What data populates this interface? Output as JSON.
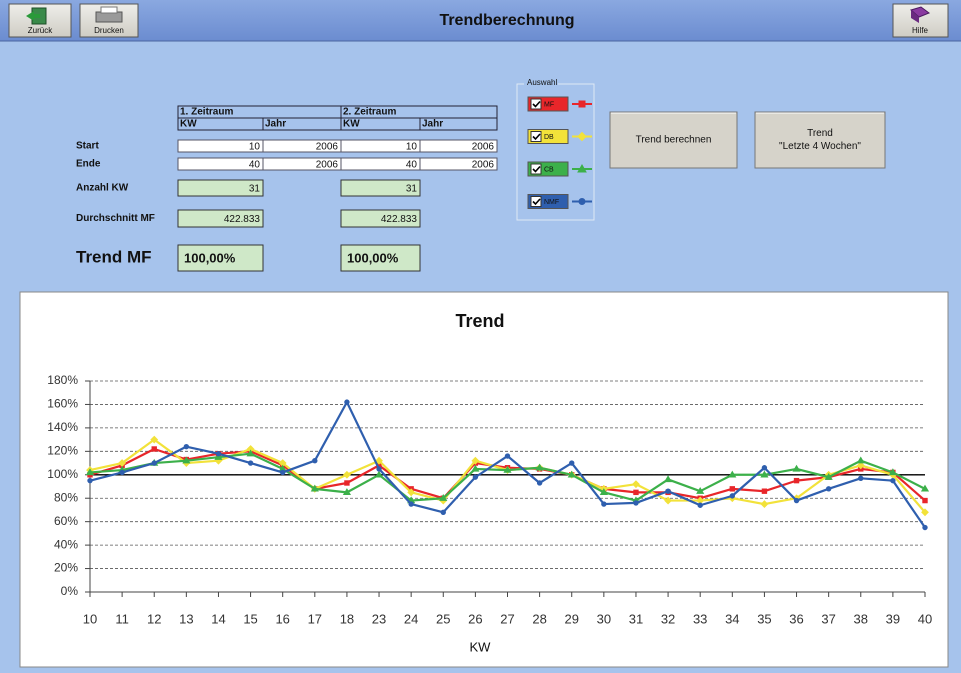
{
  "toolbar": {
    "buttons": [
      "Zurück",
      "Drucken"
    ],
    "title": "Trendberechnung",
    "help": "Hilfe"
  },
  "table": {
    "periods": [
      "1. Zeitraum",
      "2. Zeitraum"
    ],
    "columns": [
      "KW",
      "Jahr",
      "KW",
      "Jahr"
    ],
    "rows": [
      {
        "label": "Start",
        "cells": [
          10,
          2006,
          10,
          2006
        ]
      },
      {
        "label": "Ende",
        "cells": [
          40,
          2006,
          40,
          2006
        ]
      },
      {
        "label": "Anzahl KW",
        "cells": [
          31,
          31
        ]
      },
      {
        "label": "Durchschnitt MF",
        "cells": [
          "422.833",
          "422.833"
        ]
      },
      {
        "label": "Trend MF",
        "cells": [
          "100,00%",
          "100,00%"
        ]
      }
    ]
  },
  "selection": {
    "title": "Auswahl",
    "checked": [
      true,
      true,
      true,
      true
    ]
  },
  "actions": [
    {
      "lines": [
        "Trend berechnen"
      ]
    },
    {
      "lines": [
        "Trend",
        "\"Letzte 4 Wochen\""
      ]
    }
  ],
  "chart_data": {
    "type": "line",
    "title": "Trend",
    "x_label": "KW",
    "categories": [
      "10",
      "11",
      "12",
      "13",
      "14",
      "15",
      "16",
      "17",
      "18",
      "23",
      "24",
      "25",
      "26",
      "27",
      "28",
      "29",
      "30",
      "31",
      "32",
      "33",
      "34",
      "35",
      "36",
      "37",
      "38",
      "39",
      "40"
    ],
    "series": [
      {
        "name": "MF",
        "color": "#e8262a",
        "marker": "square",
        "values": [
          100,
          108,
          122,
          113,
          118,
          120,
          108,
          88,
          93,
          108,
          88,
          80,
          110,
          106,
          105,
          100,
          88,
          85,
          85,
          80,
          88,
          86,
          95,
          98,
          105,
          102,
          78
        ]
      },
      {
        "name": "DB",
        "color": "#f2e23a",
        "marker": "diamond",
        "values": [
          104,
          110,
          130,
          110,
          112,
          122,
          110,
          88,
          100,
          112,
          85,
          78,
          112,
          104,
          106,
          100,
          88,
          92,
          78,
          78,
          80,
          75,
          80,
          100,
          108,
          100,
          68
        ]
      },
      {
        "name": "CB",
        "color": "#3cb04a",
        "marker": "triangle",
        "values": [
          102,
          104,
          110,
          112,
          115,
          118,
          105,
          88,
          85,
          100,
          78,
          80,
          105,
          104,
          106,
          100,
          85,
          78,
          96,
          86,
          100,
          100,
          105,
          98,
          112,
          102,
          88
        ]
      },
      {
        "name": "NMF",
        "color": "#2f5fae",
        "marker": "circle",
        "values": [
          95,
          102,
          110,
          124,
          118,
          110,
          102,
          112,
          162,
          105,
          75,
          68,
          98,
          116,
          93,
          110,
          75,
          76,
          86,
          74,
          82,
          106,
          78,
          88,
          97,
          95,
          55
        ]
      }
    ],
    "ylim": [
      0,
      180
    ],
    "yticks": [
      {
        "value": 0,
        "label": "0%"
      },
      {
        "value": 20,
        "label": "20%"
      },
      {
        "value": 40,
        "label": "40%"
      },
      {
        "value": 60,
        "label": "60%"
      },
      {
        "value": 80,
        "label": "80%"
      },
      {
        "value": 100,
        "label": "100%"
      },
      {
        "value": 120,
        "label": "120%"
      },
      {
        "value": 140,
        "label": "140%"
      },
      {
        "value": 160,
        "label": "160%"
      },
      {
        "value": 180,
        "label": "180%"
      }
    ],
    "reference_line": 100,
    "grid": true
  }
}
